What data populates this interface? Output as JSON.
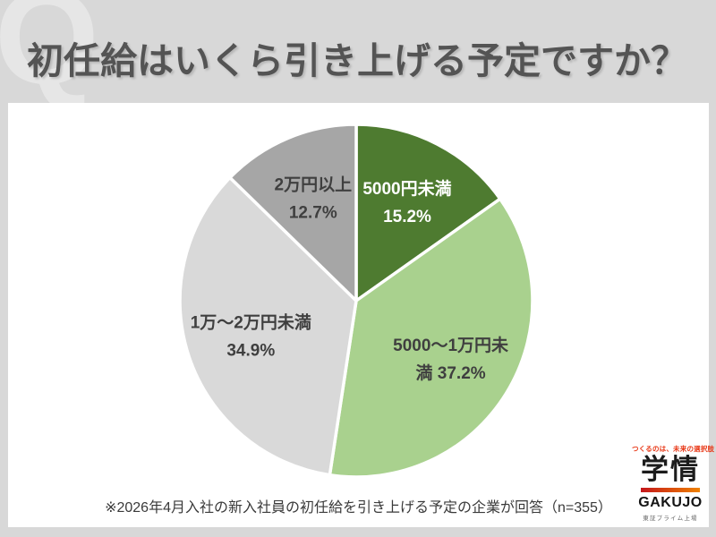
{
  "page": {
    "background": "#d8d8d8",
    "panel_color": "#ffffff",
    "watermark_letter": "Q",
    "title": "初任給はいくら引き上げる予定ですか？",
    "title_color": "#545454"
  },
  "chart_data": {
    "type": "pie",
    "title": "初任給はいくら引き上げる予定ですか？",
    "unit": "%",
    "start_angle_deg": 0,
    "direction": "clockwise",
    "legend": "none",
    "labels_position": "inside",
    "slices": [
      {
        "label": "5000円未満",
        "value": 15.2,
        "color": "#4e7b30",
        "text_color": "#ffffff",
        "lines": [
          "5000円未満",
          "15.2%"
        ]
      },
      {
        "label": "5000～1万円未満",
        "value": 37.2,
        "color": "#a9d18e",
        "text_color": "#3f3f3f",
        "lines": [
          "5000～1万円未",
          "満 37.2%"
        ]
      },
      {
        "label": "1万～2万円未満",
        "value": 34.9,
        "color": "#d9d9d9",
        "text_color": "#3f3f3f",
        "lines": [
          "1万～2万円未満",
          "34.9%"
        ]
      },
      {
        "label": "2万円以上",
        "value": 12.7,
        "color": "#a6a6a6",
        "text_color": "#3f3f3f",
        "lines": [
          "2万円以上",
          "12.7%"
        ]
      }
    ]
  },
  "footnote": "※2026年4月入社の新入社員の初任給を引き上げる予定の企業が回答（n=355）",
  "logo": {
    "tagline": "つくるのは、未来の選択肢",
    "tagline_color": "#e83817",
    "name_jp": "学情",
    "name_en": "GAKUJO",
    "subtitle": "東証プライム上場",
    "bar_gradient_left": "#c4161c",
    "bar_gradient_right": "#ef8200"
  }
}
